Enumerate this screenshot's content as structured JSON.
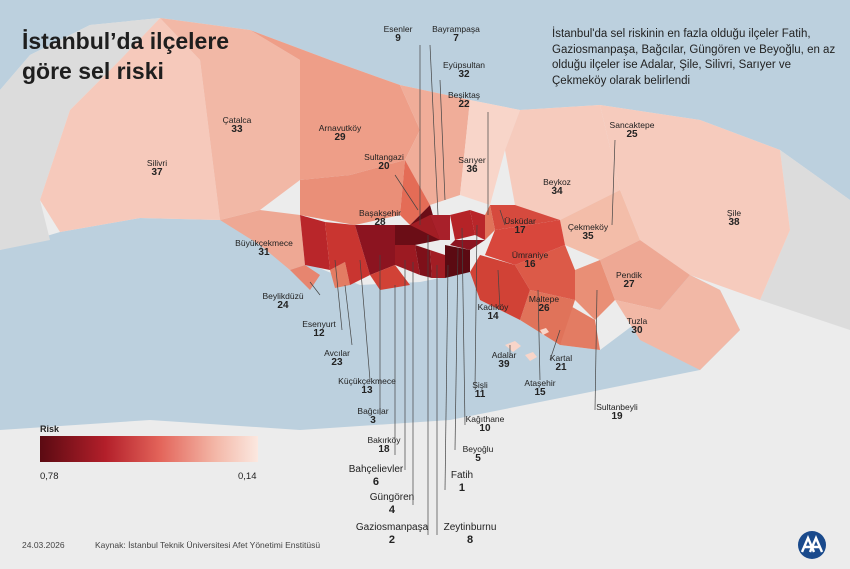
{
  "title_line1": "İstanbul’da ilçelere",
  "title_line2": "göre sel riski",
  "info_text": "İstanbul'da sel riskinin en fazla olduğu ilçeler Fatih, Gaziosmanpaşa, Bağcılar, Güngören ve Beyoğlu, en az olduğu ilçeler ise Adalar, Şile, Silivri, Sarıyer ve Çekmeköy olarak belirlendi",
  "legend": {
    "title": "Risk",
    "min_label": "0,78",
    "max_label": "0,14"
  },
  "footer": {
    "date": "24.03.2026",
    "source": "Kaynak: İstanbul Teknik Üniversitesi Afet Yönetimi Enstitüsü"
  },
  "colors": {
    "sea": "#bcd0de",
    "land_gray": "#dcdcdc",
    "background": "#ececec",
    "risk_high": "#5b0a12",
    "risk_low": "#fbe8e0"
  },
  "districts": [
    {
      "id": "esenler",
      "name": "Esenler",
      "rank": "9"
    },
    {
      "id": "bayrampasa",
      "name": "Bayrampaşa",
      "rank": "7"
    },
    {
      "id": "eyupsultan",
      "name": "Eyüpsultan",
      "rank": "32"
    },
    {
      "id": "besiktas",
      "name": "Beşiktaş",
      "rank": "22"
    },
    {
      "id": "catalca",
      "name": "Çatalca",
      "rank": "33"
    },
    {
      "id": "arnavutkoy",
      "name": "Arnavutköy",
      "rank": "29"
    },
    {
      "id": "silivri",
      "name": "Silivri",
      "rank": "37"
    },
    {
      "id": "sultangazi",
      "name": "Sultangazi",
      "rank": "20"
    },
    {
      "id": "sariyer",
      "name": "Sarıyer",
      "rank": "36"
    },
    {
      "id": "sancaktepe",
      "name": "Sancaktepe",
      "rank": "25"
    },
    {
      "id": "beykoz",
      "name": "Beykoz",
      "rank": "34"
    },
    {
      "id": "basaksehir",
      "name": "Başakşehir",
      "rank": "28"
    },
    {
      "id": "uskudar",
      "name": "Üsküdar",
      "rank": "17"
    },
    {
      "id": "cekmekoy",
      "name": "Çekmeköy",
      "rank": "35"
    },
    {
      "id": "sile",
      "name": "Şile",
      "rank": "38"
    },
    {
      "id": "buyukcekmece",
      "name": "Büyükçekmece",
      "rank": "31"
    },
    {
      "id": "umraniye",
      "name": "Ümraniye",
      "rank": "16"
    },
    {
      "id": "pendik",
      "name": "Pendik",
      "rank": "27"
    },
    {
      "id": "beylikduzu",
      "name": "Beylikdüzü",
      "rank": "24"
    },
    {
      "id": "kadikoy",
      "name": "Kadıköy",
      "rank": "14"
    },
    {
      "id": "maltepe",
      "name": "Maltepe",
      "rank": "26"
    },
    {
      "id": "tuzla",
      "name": "Tuzla",
      "rank": "30"
    },
    {
      "id": "esenyurt",
      "name": "Esenyurt",
      "rank": "12"
    },
    {
      "id": "avcilar",
      "name": "Avcılar",
      "rank": "23"
    },
    {
      "id": "adalar",
      "name": "Adalar",
      "rank": "39"
    },
    {
      "id": "kartal",
      "name": "Kartal",
      "rank": "21"
    },
    {
      "id": "kucukcekmece",
      "name": "Küçükçekmece",
      "rank": "13"
    },
    {
      "id": "sisli",
      "name": "Şişli",
      "rank": "11"
    },
    {
      "id": "atasehir",
      "name": "Ataşehir",
      "rank": "15"
    },
    {
      "id": "bagcilar",
      "name": "Bağcılar",
      "rank": "3"
    },
    {
      "id": "kagithane",
      "name": "Kağıthane",
      "rank": "10"
    },
    {
      "id": "sultanbeyli",
      "name": "Sultanbeyli",
      "rank": "19"
    },
    {
      "id": "bakirkoy",
      "name": "Bakırköy",
      "rank": "18"
    },
    {
      "id": "beyoglu",
      "name": "Beyoğlu",
      "rank": "5"
    },
    {
      "id": "bahcelievler",
      "name": "Bahçelievler",
      "rank": "6"
    },
    {
      "id": "fatih",
      "name": "Fatih",
      "rank": "1"
    },
    {
      "id": "gungoren",
      "name": "Güngören",
      "rank": "4"
    },
    {
      "id": "gaziosmanpasa",
      "name": "Gaziosmanpaşa",
      "rank": "2"
    },
    {
      "id": "zeytinburnu",
      "name": "Zeytinburnu",
      "rank": "8"
    }
  ]
}
